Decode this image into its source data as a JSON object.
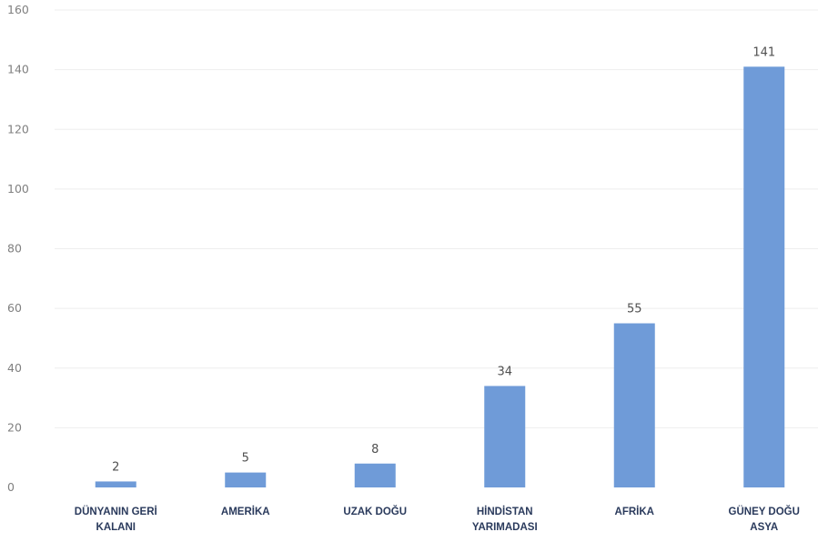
{
  "chart_data": {
    "type": "bar",
    "categories": [
      [
        "DÜNYANIN GERİ",
        "KALANI"
      ],
      [
        "AMERİKA"
      ],
      [
        "UZAK DOĞU"
      ],
      [
        "HİNDİSTAN",
        "YARIMADASI"
      ],
      [
        "AFRİKA"
      ],
      [
        "GÜNEY DOĞU",
        "ASYA"
      ]
    ],
    "values": [
      2,
      5,
      8,
      34,
      55,
      141
    ],
    "data_labels": [
      "2",
      "5",
      "8",
      "34",
      "55",
      "141"
    ],
    "y_ticks": [
      "0",
      "20",
      "40",
      "60",
      "80",
      "100",
      "120",
      "140",
      "160"
    ],
    "ylim": [
      0,
      160
    ],
    "grid": true,
    "legend": "none",
    "bar_color": "#6f9bd8"
  }
}
